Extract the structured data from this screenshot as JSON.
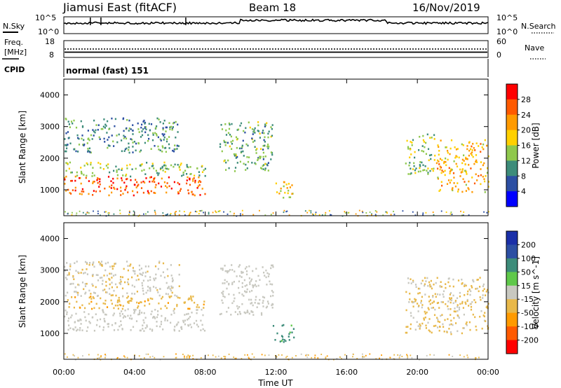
{
  "header": {
    "station": "Jiamusi East (fitACF)",
    "beam": "Beam 18",
    "date": "16/Nov/2019"
  },
  "noise_panel": {
    "left_label": "N.Sky",
    "left_ticks": [
      "10^5",
      "10^0"
    ],
    "right_label": "N.Search",
    "right_ticks": [
      "10^5",
      "10^0"
    ]
  },
  "freq_panel": {
    "left_label_1": "Freq.",
    "left_label_2": "[MHz]",
    "left_ticks": [
      "18",
      "8"
    ],
    "right_label": "Nave",
    "right_ticks": [
      "60",
      "0"
    ]
  },
  "cpid": {
    "label": "CPID",
    "value": "normal (fast) 151"
  },
  "colors": {
    "power_scale": [
      "#0000ff",
      "#2c4fa3",
      "#3d8c7a",
      "#8fc84d",
      "#ffd000",
      "#ff9a00",
      "#ff5a00",
      "#ff0000"
    ],
    "velocity_scale": [
      "#ff0000",
      "#ff5a00",
      "#ff9a00",
      "#e8b84a",
      "#c8c8c0",
      "#5fc84a",
      "#3d8c7a",
      "#2c4fa3",
      "#1a2fa8"
    ]
  },
  "chart_data": [
    {
      "type": "heatmap",
      "name": "power",
      "ylabel": "Slant Range [km]",
      "yticks": [
        "4000",
        "3000",
        "2000",
        "1000"
      ],
      "ylim": [
        180,
        4500
      ],
      "colorbar_label": "Power [dB]",
      "colorbar_ticks": [
        "28",
        "24",
        "20",
        "16",
        "12",
        "8",
        "4"
      ],
      "color_range": [
        0,
        32
      ],
      "echo_regions": [
        {
          "t_start": 0.0,
          "t_end": 8.0,
          "range_km": [
            850,
            1450
          ],
          "power_db": 26
        },
        {
          "t_start": 0.0,
          "t_end": 8.0,
          "range_km": [
            1450,
            1900
          ],
          "power_db": 14
        },
        {
          "t_start": 0.0,
          "t_end": 6.5,
          "range_km": [
            2200,
            3300
          ],
          "power_db": 10
        },
        {
          "t_start": 8.8,
          "t_end": 11.8,
          "range_km": [
            1600,
            3200
          ],
          "power_db": 12
        },
        {
          "t_start": 11.8,
          "t_end": 13.0,
          "range_km": [
            750,
            1300
          ],
          "power_db": 18
        },
        {
          "t_start": 19.3,
          "t_end": 21.0,
          "range_km": [
            1500,
            2800
          ],
          "power_db": 14
        },
        {
          "t_start": 21.0,
          "t_end": 24.0,
          "range_km": [
            950,
            2600
          ],
          "power_db": 20
        }
      ]
    },
    {
      "type": "heatmap",
      "name": "velocity",
      "ylabel": "Slant Range [km]",
      "yticks": [
        "4000",
        "3000",
        "2000",
        "1000"
      ],
      "ylim": [
        180,
        4500
      ],
      "colorbar_label": "Velocity [m s^-1]",
      "colorbar_ticks": [
        "200",
        "100",
        "50",
        "15",
        "-15",
        "-50",
        "-100",
        "-200"
      ],
      "color_range": [
        -250,
        250
      ],
      "xlabel": "Time UT",
      "xticks": [
        "00:00",
        "04:00",
        "08:00",
        "12:00",
        "16:00",
        "20:00",
        "00:00"
      ],
      "xlim": [
        0,
        24
      ],
      "echo_regions": [
        {
          "t_start": 0.0,
          "t_end": 8.0,
          "range_km": [
            1100,
            1800
          ],
          "velocity": 0
        },
        {
          "t_start": 0.0,
          "t_end": 8.0,
          "range_km": [
            1800,
            2200
          ],
          "velocity": -40
        },
        {
          "t_start": 0.0,
          "t_end": 6.5,
          "range_km": [
            2200,
            3300
          ],
          "velocity": -10
        },
        {
          "t_start": 8.8,
          "t_end": 11.8,
          "range_km": [
            1600,
            3200
          ],
          "velocity": 0
        },
        {
          "t_start": 11.8,
          "t_end": 13.0,
          "range_km": [
            750,
            1300
          ],
          "velocity": 60
        },
        {
          "t_start": 19.3,
          "t_end": 24.0,
          "range_km": [
            1000,
            2800
          ],
          "velocity": -20
        }
      ]
    }
  ]
}
